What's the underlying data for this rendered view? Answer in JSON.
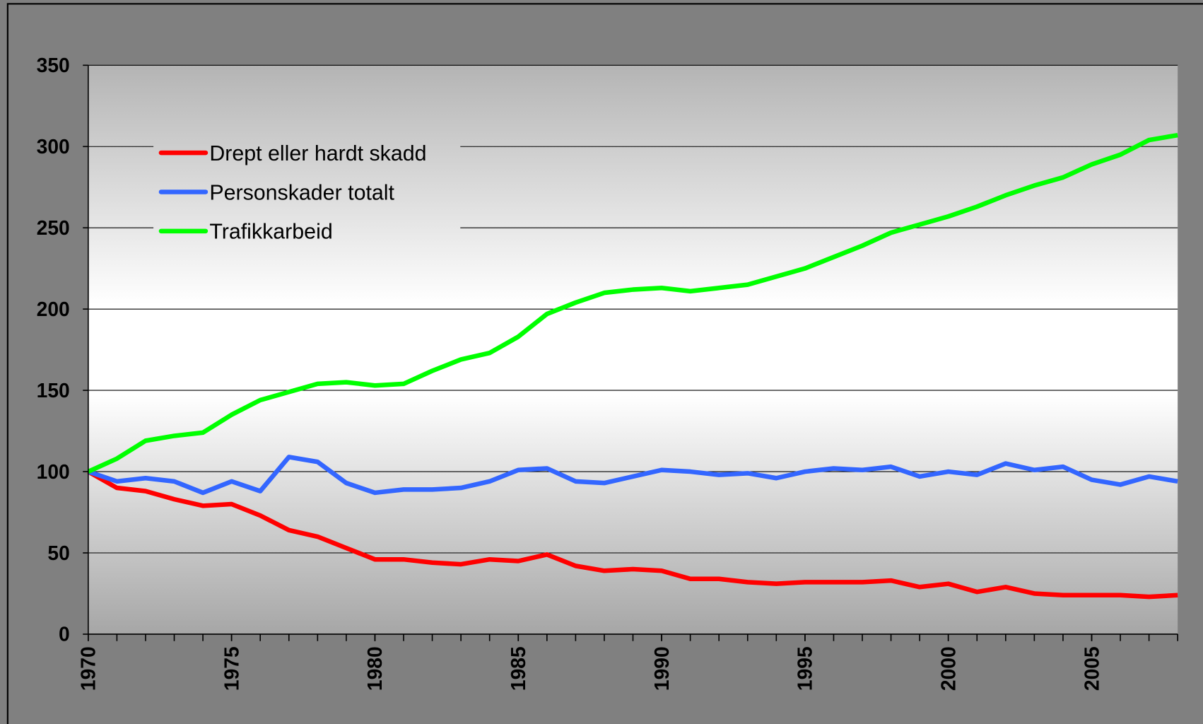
{
  "chart_data": {
    "type": "line",
    "x": [
      1970,
      1971,
      1972,
      1973,
      1974,
      1975,
      1976,
      1977,
      1978,
      1979,
      1980,
      1981,
      1982,
      1983,
      1984,
      1985,
      1986,
      1987,
      1988,
      1989,
      1990,
      1991,
      1992,
      1993,
      1994,
      1995,
      1996,
      1997,
      1998,
      1999,
      2000,
      2001,
      2002,
      2003,
      2004,
      2005,
      2006,
      2007,
      2008
    ],
    "series": [
      {
        "name": "Drept eller hardt skadd",
        "color": "#ff0000",
        "values": [
          100,
          90,
          88,
          83,
          79,
          80,
          73,
          64,
          60,
          53,
          46,
          46,
          44,
          43,
          46,
          45,
          49,
          42,
          39,
          40,
          39,
          34,
          34,
          32,
          31,
          32,
          32,
          32,
          33,
          29,
          31,
          26,
          29,
          25,
          24,
          24,
          24,
          23,
          24
        ]
      },
      {
        "name": "Personskader totalt",
        "color": "#3366ff",
        "values": [
          100,
          94,
          96,
          94,
          87,
          94,
          88,
          109,
          106,
          93,
          87,
          89,
          89,
          90,
          94,
          101,
          102,
          94,
          93,
          97,
          101,
          100,
          98,
          99,
          96,
          100,
          102,
          101,
          103,
          97,
          100,
          98,
          105,
          101,
          103,
          95,
          92,
          97,
          94
        ]
      },
      {
        "name": "Trafikkarbeid",
        "color": "#00ff00",
        "values": [
          100,
          108,
          119,
          122,
          124,
          135,
          144,
          149,
          154,
          155,
          153,
          154,
          162,
          169,
          173,
          183,
          197,
          204,
          210,
          212,
          213,
          211,
          213,
          215,
          220,
          225,
          232,
          239,
          247,
          252,
          257,
          263,
          270,
          276,
          281,
          289,
          295,
          304,
          307
        ]
      }
    ],
    "xlim": [
      1970,
      2008
    ],
    "xticks": [
      1970,
      1975,
      1980,
      1985,
      1990,
      1995,
      2000,
      2005
    ],
    "ylim": [
      0,
      350
    ],
    "yticks": [
      0,
      50,
      100,
      150,
      200,
      250,
      300,
      350
    ],
    "grid": true,
    "legend": "top-left"
  }
}
